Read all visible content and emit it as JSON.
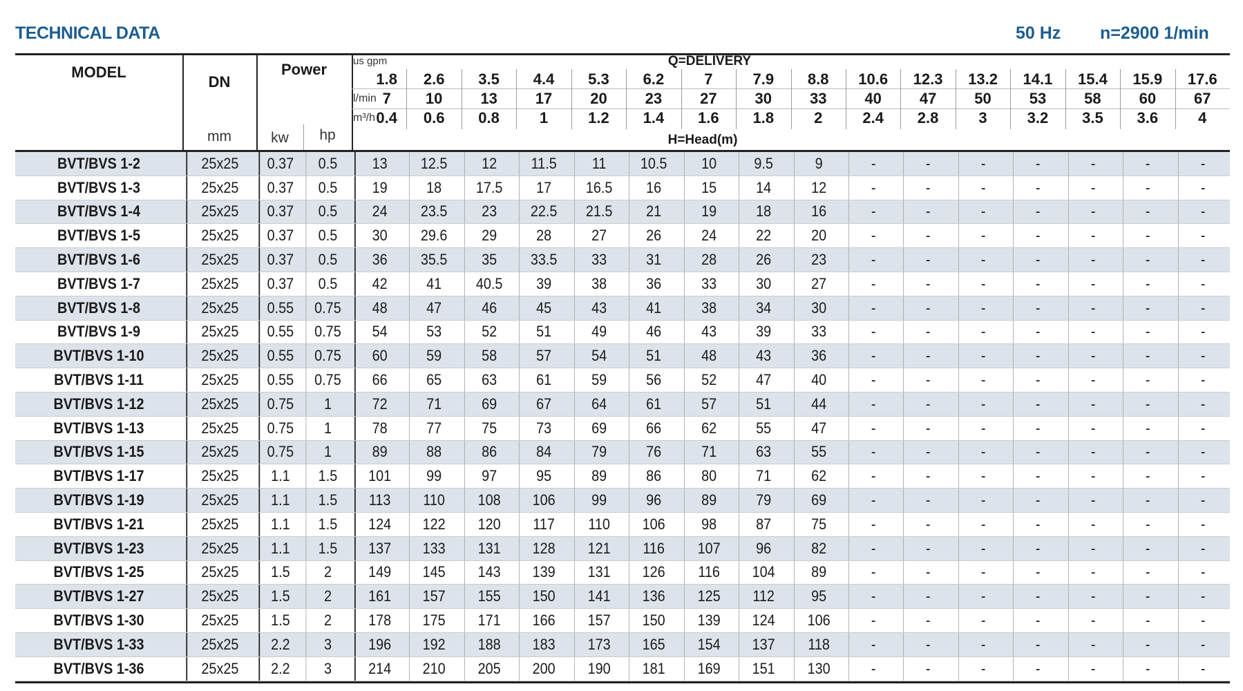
{
  "header": {
    "title": "TECHNICAL DATA",
    "frequency": "50 Hz",
    "speed": "n=2900 1/min"
  },
  "columns": {
    "model": "MODEL",
    "dn": "DN",
    "dn_unit": "mm",
    "power": "Power",
    "kw": "kw",
    "hp": "hp",
    "delivery": "Q=DELIVERY",
    "head": "H=Head(m)",
    "gpm_label": "us gpm",
    "lmin_label": "l/min",
    "m3h_label": "m³/h",
    "gpm": [
      "1.8",
      "2.6",
      "3.5",
      "4.4",
      "5.3",
      "6.2",
      "7",
      "7.9",
      "8.8",
      "10.6",
      "12.3",
      "13.2",
      "14.1",
      "15.4",
      "15.9",
      "17.6"
    ],
    "lmin": [
      "7",
      "10",
      "13",
      "17",
      "20",
      "23",
      "27",
      "30",
      "33",
      "40",
      "47",
      "50",
      "53",
      "58",
      "60",
      "67"
    ],
    "m3h": [
      "0.4",
      "0.6",
      "0.8",
      "1",
      "1.2",
      "1.4",
      "1.6",
      "1.8",
      "2",
      "2.4",
      "2.8",
      "3",
      "3.2",
      "3.5",
      "3.6",
      "4"
    ]
  },
  "rows": [
    [
      "BVT/BVS 1-2",
      "25x25",
      "0.37",
      "0.5",
      [
        "13",
        "12.5",
        "12",
        "11.5",
        "11",
        "10.5",
        "10",
        "9.5",
        "9",
        "-",
        "-",
        "-",
        "-",
        "-",
        "-",
        "-"
      ]
    ],
    [
      "BVT/BVS 1-3",
      "25x25",
      "0.37",
      "0.5",
      [
        "19",
        "18",
        "17.5",
        "17",
        "16.5",
        "16",
        "15",
        "14",
        "12",
        "-",
        "-",
        "-",
        "-",
        "-",
        "-",
        "-"
      ]
    ],
    [
      "BVT/BVS 1-4",
      "25x25",
      "0.37",
      "0.5",
      [
        "24",
        "23.5",
        "23",
        "22.5",
        "21.5",
        "21",
        "19",
        "18",
        "16",
        "-",
        "-",
        "-",
        "-",
        "-",
        "-",
        "-"
      ]
    ],
    [
      "BVT/BVS 1-5",
      "25x25",
      "0.37",
      "0.5",
      [
        "30",
        "29.6",
        "29",
        "28",
        "27",
        "26",
        "24",
        "22",
        "20",
        "-",
        "-",
        "-",
        "-",
        "-",
        "-",
        "-"
      ]
    ],
    [
      "BVT/BVS 1-6",
      "25x25",
      "0.37",
      "0.5",
      [
        "36",
        "35.5",
        "35",
        "33.5",
        "33",
        "31",
        "28",
        "26",
        "23",
        "-",
        "-",
        "-",
        "-",
        "-",
        "-",
        "-"
      ]
    ],
    [
      "BVT/BVS 1-7",
      "25x25",
      "0.37",
      "0.5",
      [
        "42",
        "41",
        "40.5",
        "39",
        "38",
        "36",
        "33",
        "30",
        "27",
        "-",
        "-",
        "-",
        "-",
        "-",
        "-",
        "-"
      ]
    ],
    [
      "BVT/BVS 1-8",
      "25x25",
      "0.55",
      "0.75",
      [
        "48",
        "47",
        "46",
        "45",
        "43",
        "41",
        "38",
        "34",
        "30",
        "-",
        "-",
        "-",
        "-",
        "-",
        "-",
        "-"
      ]
    ],
    [
      "BVT/BVS 1-9",
      "25x25",
      "0.55",
      "0.75",
      [
        "54",
        "53",
        "52",
        "51",
        "49",
        "46",
        "43",
        "39",
        "33",
        "-",
        "-",
        "-",
        "-",
        "-",
        "-",
        "-"
      ]
    ],
    [
      "BVT/BVS 1-10",
      "25x25",
      "0.55",
      "0.75",
      [
        "60",
        "59",
        "58",
        "57",
        "54",
        "51",
        "48",
        "43",
        "36",
        "-",
        "-",
        "-",
        "-",
        "-",
        "-",
        "-"
      ]
    ],
    [
      "BVT/BVS 1-11",
      "25x25",
      "0.55",
      "0.75",
      [
        "66",
        "65",
        "63",
        "61",
        "59",
        "56",
        "52",
        "47",
        "40",
        "-",
        "-",
        "-",
        "-",
        "-",
        "-",
        "-"
      ]
    ],
    [
      "BVT/BVS 1-12",
      "25x25",
      "0.75",
      "1",
      [
        "72",
        "71",
        "69",
        "67",
        "64",
        "61",
        "57",
        "51",
        "44",
        "-",
        "-",
        "-",
        "-",
        "-",
        "-",
        "-"
      ]
    ],
    [
      "BVT/BVS 1-13",
      "25x25",
      "0.75",
      "1",
      [
        "78",
        "77",
        "75",
        "73",
        "69",
        "66",
        "62",
        "55",
        "47",
        "-",
        "-",
        "-",
        "-",
        "-",
        "-",
        "-"
      ]
    ],
    [
      "BVT/BVS 1-15",
      "25x25",
      "0.75",
      "1",
      [
        "89",
        "88",
        "86",
        "84",
        "79",
        "76",
        "71",
        "63",
        "55",
        "-",
        "-",
        "-",
        "-",
        "-",
        "-",
        "-"
      ]
    ],
    [
      "BVT/BVS 1-17",
      "25x25",
      "1.1",
      "1.5",
      [
        "101",
        "99",
        "97",
        "95",
        "89",
        "86",
        "80",
        "71",
        "62",
        "-",
        "-",
        "-",
        "-",
        "-",
        "-",
        "-"
      ]
    ],
    [
      "BVT/BVS 1-19",
      "25x25",
      "1.1",
      "1.5",
      [
        "113",
        "110",
        "108",
        "106",
        "99",
        "96",
        "89",
        "79",
        "69",
        "-",
        "-",
        "-",
        "-",
        "-",
        "-",
        "-"
      ]
    ],
    [
      "BVT/BVS 1-21",
      "25x25",
      "1.1",
      "1.5",
      [
        "124",
        "122",
        "120",
        "117",
        "110",
        "106",
        "98",
        "87",
        "75",
        "-",
        "-",
        "-",
        "-",
        "-",
        "-",
        "-"
      ]
    ],
    [
      "BVT/BVS 1-23",
      "25x25",
      "1.1",
      "1.5",
      [
        "137",
        "133",
        "131",
        "128",
        "121",
        "116",
        "107",
        "96",
        "82",
        "-",
        "-",
        "-",
        "-",
        "-",
        "-",
        "-"
      ]
    ],
    [
      "BVT/BVS 1-25",
      "25x25",
      "1.5",
      "2",
      [
        "149",
        "145",
        "143",
        "139",
        "131",
        "126",
        "116",
        "104",
        "89",
        "-",
        "-",
        "-",
        "-",
        "-",
        "-",
        "-"
      ]
    ],
    [
      "BVT/BVS 1-27",
      "25x25",
      "1.5",
      "2",
      [
        "161",
        "157",
        "155",
        "150",
        "141",
        "136",
        "125",
        "112",
        "95",
        "-",
        "-",
        "-",
        "-",
        "-",
        "-",
        "-"
      ]
    ],
    [
      "BVT/BVS 1-30",
      "25x25",
      "1.5",
      "2",
      [
        "178",
        "175",
        "171",
        "166",
        "157",
        "150",
        "139",
        "124",
        "106",
        "-",
        "-",
        "-",
        "-",
        "-",
        "-",
        "-"
      ]
    ],
    [
      "BVT/BVS 1-33",
      "25x25",
      "2.2",
      "3",
      [
        "196",
        "192",
        "188",
        "183",
        "173",
        "165",
        "154",
        "137",
        "118",
        "-",
        "-",
        "-",
        "-",
        "-",
        "-",
        "-"
      ]
    ],
    [
      "BVT/BVS 1-36",
      "25x25",
      "2.2",
      "3",
      [
        "214",
        "210",
        "205",
        "200",
        "190",
        "181",
        "169",
        "151",
        "130",
        "-",
        "-",
        "-",
        "-",
        "-",
        "-",
        "-"
      ]
    ]
  ],
  "colors": {
    "title": "#1c5d8f",
    "row_shade": "#dde3ea",
    "rule": "#222222"
  }
}
